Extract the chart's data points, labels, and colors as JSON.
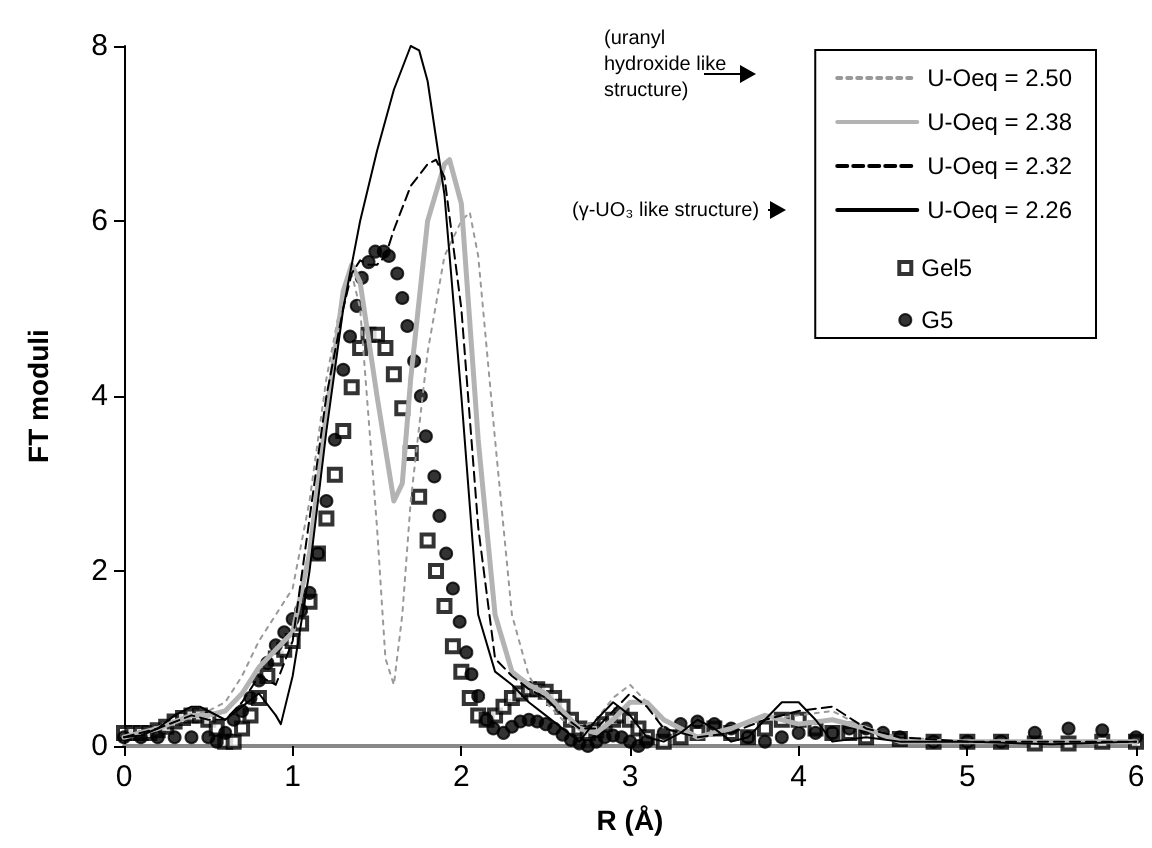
{
  "chart_data": {
    "type": "line",
    "xlabel": "R (Å)",
    "ylabel": "FT moduli",
    "xlim": [
      0,
      6
    ],
    "xticks": [
      0,
      1,
      2,
      3,
      4,
      5,
      6
    ],
    "ylim": [
      0,
      8
    ],
    "yticks": [
      0,
      2,
      4,
      6,
      8
    ],
    "grid": false,
    "legend": "top right",
    "annotations": [
      "(uranyl hydroxide like structure)",
      "(γ-UO₃ like structure)"
    ],
    "series": [
      {
        "name": "U-Oeq = 2.50",
        "color": "#999999",
        "line_style": "dotted",
        "marker": "none",
        "x": [
          0,
          0.2,
          0.4,
          0.5,
          0.6,
          0.7,
          0.8,
          0.9,
          1.0,
          1.1,
          1.2,
          1.3,
          1.35,
          1.4,
          1.5,
          1.55,
          1.6,
          1.65,
          1.7,
          1.8,
          1.9,
          2.0,
          2.05,
          2.1,
          2.2,
          2.3,
          2.4,
          2.5,
          2.6,
          2.7,
          2.8,
          2.9,
          3.0,
          3.1,
          3.2,
          3.4,
          3.6,
          3.8,
          4.0,
          4.2,
          4.4,
          4.6,
          5.0,
          5.5,
          6.0
        ],
        "values": [
          0.1,
          0.2,
          0.35,
          0.4,
          0.5,
          0.8,
          1.2,
          1.5,
          1.8,
          2.8,
          4.2,
          5.2,
          5.4,
          5.0,
          2.5,
          1.0,
          0.7,
          1.5,
          2.8,
          4.5,
          5.6,
          6.0,
          6.1,
          5.6,
          3.5,
          1.5,
          0.8,
          0.5,
          0.3,
          0.2,
          0.3,
          0.55,
          0.7,
          0.5,
          0.2,
          0.1,
          0.2,
          0.3,
          0.35,
          0.4,
          0.2,
          0.1,
          0.05,
          0.05,
          0.05
        ]
      },
      {
        "name": "U-Oeq = 2.38",
        "color": "#b3b3b3",
        "line_style": "solid",
        "marker": "none",
        "x": [
          0,
          0.2,
          0.4,
          0.5,
          0.6,
          0.7,
          0.8,
          0.9,
          1.0,
          1.1,
          1.2,
          1.3,
          1.35,
          1.4,
          1.5,
          1.6,
          1.65,
          1.7,
          1.8,
          1.9,
          1.93,
          2.0,
          2.1,
          2.2,
          2.3,
          2.4,
          2.5,
          2.6,
          2.7,
          2.8,
          2.9,
          3.0,
          3.1,
          3.2,
          3.4,
          3.6,
          3.8,
          4.0,
          4.2,
          4.4,
          4.6,
          5.0,
          5.5,
          6.0
        ],
        "values": [
          0.1,
          0.2,
          0.35,
          0.35,
          0.4,
          0.6,
          0.9,
          1.1,
          1.3,
          2.2,
          3.8,
          5.2,
          5.5,
          5.3,
          4.0,
          2.8,
          3.0,
          4.2,
          6.0,
          6.65,
          6.7,
          6.2,
          3.5,
          1.5,
          0.85,
          0.7,
          0.6,
          0.4,
          0.2,
          0.15,
          0.3,
          0.5,
          0.5,
          0.3,
          0.1,
          0.2,
          0.35,
          0.25,
          0.3,
          0.2,
          0.05,
          0.05,
          0.05,
          0.05
        ]
      },
      {
        "name": "U-Oeq = 2.32",
        "color": "#000000",
        "line_style": "dashed",
        "marker": "none",
        "x": [
          0,
          0.2,
          0.4,
          0.5,
          0.6,
          0.7,
          0.8,
          0.9,
          1.0,
          1.1,
          1.2,
          1.3,
          1.35,
          1.4,
          1.45,
          1.5,
          1.55,
          1.6,
          1.7,
          1.8,
          1.85,
          1.9,
          2.0,
          2.1,
          2.2,
          2.3,
          2.4,
          2.5,
          2.6,
          2.7,
          2.8,
          2.9,
          3.0,
          3.1,
          3.2,
          3.4,
          3.6,
          3.8,
          4.0,
          4.2,
          4.4,
          4.6,
          5.0,
          5.5,
          6.0
        ],
        "values": [
          0.1,
          0.2,
          0.35,
          0.3,
          0.3,
          0.5,
          0.8,
          0.7,
          1.2,
          2.6,
          4.0,
          5.0,
          5.4,
          5.55,
          5.5,
          5.5,
          5.6,
          5.9,
          6.4,
          6.65,
          6.7,
          6.5,
          5.0,
          2.5,
          1.0,
          0.8,
          0.65,
          0.55,
          0.35,
          0.2,
          0.2,
          0.4,
          0.6,
          0.45,
          0.2,
          0.1,
          0.15,
          0.3,
          0.4,
          0.45,
          0.2,
          0.1,
          0.05,
          0.05,
          0.05
        ]
      },
      {
        "name": "U-Oeq = 2.26",
        "color": "#000000",
        "line_style": "solid",
        "marker": "none",
        "x": [
          0,
          0.1,
          0.2,
          0.3,
          0.4,
          0.45,
          0.5,
          0.6,
          0.7,
          0.8,
          0.9,
          0.93,
          1.0,
          1.1,
          1.2,
          1.3,
          1.4,
          1.5,
          1.6,
          1.7,
          1.75,
          1.8,
          1.9,
          2.0,
          2.1,
          2.2,
          2.3,
          2.4,
          2.5,
          2.6,
          2.7,
          2.8,
          2.9,
          3.0,
          3.1,
          3.2,
          3.3,
          3.4,
          3.5,
          3.6,
          3.7,
          3.8,
          3.9,
          4.0,
          4.1,
          4.2,
          4.4,
          4.6,
          4.8,
          5.0,
          5.5,
          6.0
        ],
        "values": [
          0.1,
          0.12,
          0.2,
          0.35,
          0.45,
          0.45,
          0.4,
          0.3,
          0.45,
          0.6,
          0.35,
          0.25,
          0.8,
          2.0,
          3.6,
          5.0,
          6.0,
          6.8,
          7.5,
          8.0,
          7.95,
          7.6,
          6.3,
          4.0,
          1.5,
          0.85,
          0.7,
          0.5,
          0.35,
          0.2,
          0.05,
          0.3,
          0.5,
          0.35,
          0.1,
          0.05,
          0.15,
          0.3,
          0.2,
          0.05,
          0.1,
          0.3,
          0.5,
          0.5,
          0.3,
          0.05,
          0.1,
          0.05,
          0.05,
          0.05,
          0.02,
          0.05
        ]
      },
      {
        "name": "Gel5",
        "type": "scatter",
        "color": "#000000",
        "marker": "square",
        "x": [
          0,
          0.05,
          0.1,
          0.15,
          0.2,
          0.25,
          0.3,
          0.35,
          0.4,
          0.45,
          0.5,
          0.55,
          0.6,
          0.65,
          0.7,
          0.75,
          0.8,
          0.85,
          0.9,
          0.95,
          1.0,
          1.05,
          1.1,
          1.15,
          1.2,
          1.25,
          1.3,
          1.35,
          1.4,
          1.45,
          1.5,
          1.55,
          1.6,
          1.65,
          1.7,
          1.75,
          1.8,
          1.85,
          1.9,
          1.95,
          2.0,
          2.05,
          2.1,
          2.15,
          2.2,
          2.25,
          2.3,
          2.35,
          2.4,
          2.45,
          2.5,
          2.55,
          2.6,
          2.65,
          2.7,
          2.75,
          2.8,
          2.85,
          2.9,
          2.95,
          3.0,
          3.05,
          3.1,
          3.2,
          3.3,
          3.4,
          3.5,
          3.6,
          3.7,
          3.8,
          3.9,
          4.0,
          4.1,
          4.2,
          4.3,
          4.4,
          4.6,
          4.8,
          5.0,
          5.2,
          5.4,
          5.6,
          5.8,
          6.0
        ],
        "values": [
          0.15,
          0.15,
          0.15,
          0.15,
          0.18,
          0.22,
          0.28,
          0.32,
          0.35,
          0.35,
          0.3,
          0.2,
          0.05,
          0.05,
          0.2,
          0.35,
          0.55,
          0.8,
          1.0,
          1.1,
          1.2,
          1.4,
          1.65,
          2.2,
          2.6,
          3.1,
          3.6,
          4.1,
          4.55,
          4.7,
          4.7,
          4.55,
          4.25,
          3.86,
          3.35,
          2.85,
          2.35,
          2.0,
          1.6,
          1.14,
          0.85,
          0.55,
          0.35,
          0.3,
          0.35,
          0.45,
          0.55,
          0.6,
          0.65,
          0.65,
          0.62,
          0.55,
          0.45,
          0.3,
          0.2,
          0.15,
          0.18,
          0.25,
          0.3,
          0.35,
          0.3,
          0.2,
          0.1,
          0.05,
          0.1,
          0.15,
          0.2,
          0.15,
          0.1,
          0.2,
          0.3,
          0.3,
          0.2,
          0.15,
          0.15,
          0.1,
          0.08,
          0.05,
          0.05,
          0.05,
          0.03,
          0.03,
          0.05,
          0.05
        ]
      },
      {
        "name": "G5",
        "type": "scatter",
        "color": "#000000",
        "marker": "circle",
        "x": [
          0,
          0.1,
          0.2,
          0.3,
          0.4,
          0.5,
          0.55,
          0.6,
          0.65,
          0.7,
          0.75,
          0.8,
          0.85,
          0.9,
          0.95,
          1.0,
          1.05,
          1.1,
          1.15,
          1.2,
          1.25,
          1.3,
          1.34,
          1.38,
          1.41,
          1.45,
          1.49,
          1.54,
          1.57,
          1.62,
          1.65,
          1.68,
          1.72,
          1.76,
          1.79,
          1.84,
          1.87,
          1.91,
          1.95,
          1.99,
          2.03,
          2.06,
          2.1,
          2.15,
          2.19,
          2.25,
          2.3,
          2.35,
          2.4,
          2.45,
          2.5,
          2.55,
          2.6,
          2.65,
          2.7,
          2.75,
          2.8,
          2.85,
          2.9,
          2.95,
          3.0,
          3.05,
          3.1,
          3.2,
          3.3,
          3.4,
          3.5,
          3.6,
          3.7,
          3.8,
          3.9,
          4.0,
          4.1,
          4.2,
          4.3,
          4.4,
          4.5,
          4.6,
          4.8,
          5.0,
          5.2,
          5.4,
          5.6,
          5.8,
          6.0
        ],
        "values": [
          0.1,
          0.1,
          0.1,
          0.1,
          0.1,
          0.1,
          0.05,
          0.15,
          0.3,
          0.4,
          0.55,
          0.75,
          0.95,
          1.15,
          1.3,
          1.45,
          1.55,
          1.75,
          2.2,
          2.8,
          3.5,
          4.3,
          4.68,
          5.03,
          5.35,
          5.53,
          5.65,
          5.65,
          5.6,
          5.4,
          5.12,
          4.8,
          4.4,
          4.0,
          3.54,
          3.08,
          2.63,
          2.2,
          1.8,
          1.42,
          1.07,
          0.82,
          0.57,
          0.3,
          0.2,
          0.15,
          0.22,
          0.28,
          0.3,
          0.28,
          0.25,
          0.2,
          0.13,
          0.07,
          0.03,
          0.0,
          0.05,
          0.1,
          0.12,
          0.1,
          0.05,
          0.0,
          0.05,
          0.15,
          0.25,
          0.28,
          0.25,
          0.2,
          0.1,
          0.05,
          0.1,
          0.15,
          0.15,
          0.15,
          0.2,
          0.2,
          0.15,
          0.1,
          0.05,
          0.05,
          0.05,
          0.15,
          0.2,
          0.18,
          0.1
        ]
      }
    ]
  }
}
